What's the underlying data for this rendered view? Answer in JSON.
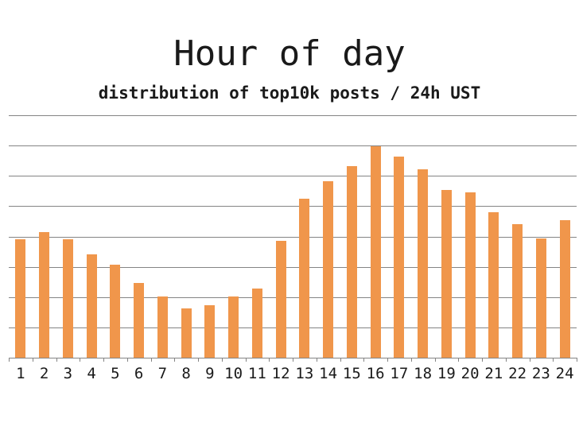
{
  "chart_data": {
    "type": "bar",
    "title": "Hour of day",
    "subtitle": "distribution of top10k posts / 24h UST",
    "categories": [
      "1",
      "2",
      "3",
      "4",
      "5",
      "6",
      "7",
      "8",
      "9",
      "10",
      "11",
      "12",
      "13",
      "14",
      "15",
      "16",
      "17",
      "18",
      "19",
      "20",
      "21",
      "22",
      "23",
      "24"
    ],
    "values": [
      390,
      415,
      392,
      341,
      306,
      247,
      202,
      163,
      174,
      203,
      227,
      386,
      525,
      582,
      631,
      697,
      664,
      622,
      553,
      545,
      479,
      441,
      393,
      453
    ],
    "xlabel": "",
    "ylabel": "",
    "ylim": [
      0,
      800
    ],
    "gridline_step": 100,
    "grid": "horizontal-only",
    "legend": "none",
    "y_axis_labels_visible": false,
    "bar_color": "#F0964B",
    "gridline_color": "#848484",
    "axis_color": "#848484",
    "text_color": "#1a1a1a",
    "background_color": "#ffffff"
  }
}
